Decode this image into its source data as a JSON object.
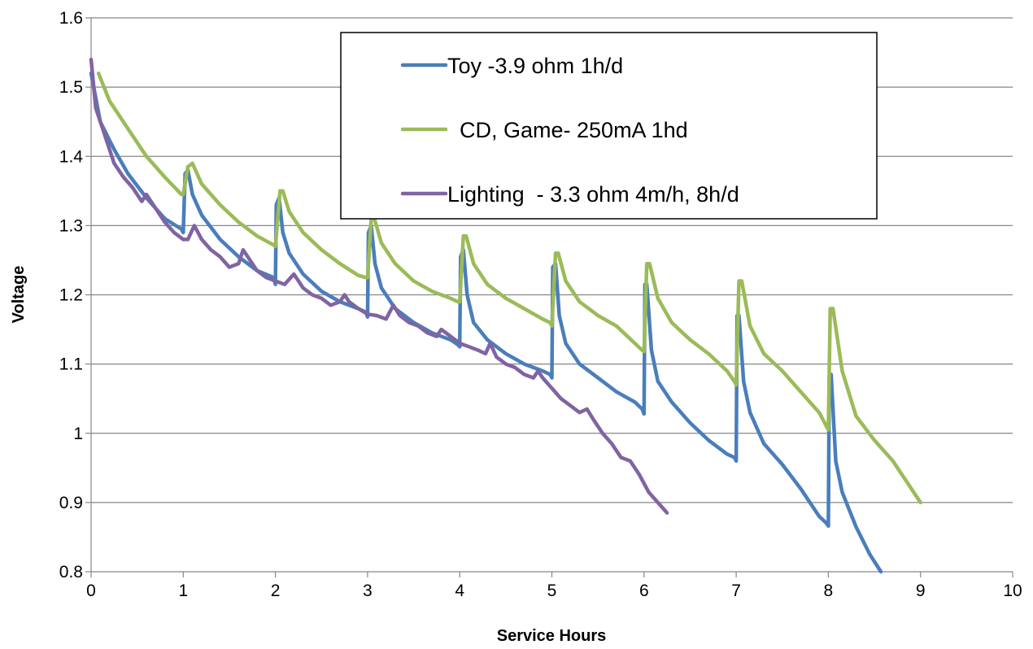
{
  "chart_data": {
    "type": "line",
    "title": "",
    "xlabel": "Service Hours",
    "ylabel": "Voltage",
    "xlim": [
      0,
      10
    ],
    "ylim": [
      0.8,
      1.6
    ],
    "x_ticks": [
      "0",
      "1",
      "2",
      "3",
      "4",
      "5",
      "6",
      "7",
      "8",
      "9",
      "10"
    ],
    "y_ticks": [
      "0.8",
      "0.9",
      "1",
      "1.1",
      "1.2",
      "1.3",
      "1.4",
      "1.5",
      "1.6"
    ],
    "grid": "horizontal",
    "legend_position": "top-center",
    "series": [
      {
        "name": "Toy -3.9 ohm 1h/d",
        "color": "#4a7ebb",
        "points": [
          [
            0.0,
            1.52
          ],
          [
            0.1,
            1.45
          ],
          [
            0.25,
            1.41
          ],
          [
            0.4,
            1.375
          ],
          [
            0.6,
            1.34
          ],
          [
            0.8,
            1.31
          ],
          [
            0.98,
            1.295
          ],
          [
            1.0,
            1.29
          ],
          [
            1.02,
            1.375
          ],
          [
            1.05,
            1.38
          ],
          [
            1.1,
            1.345
          ],
          [
            1.2,
            1.315
          ],
          [
            1.4,
            1.28
          ],
          [
            1.6,
            1.255
          ],
          [
            1.8,
            1.235
          ],
          [
            1.98,
            1.225
          ],
          [
            2.0,
            1.215
          ],
          [
            2.01,
            1.33
          ],
          [
            2.04,
            1.34
          ],
          [
            2.08,
            1.29
          ],
          [
            2.15,
            1.26
          ],
          [
            2.3,
            1.23
          ],
          [
            2.5,
            1.205
          ],
          [
            2.7,
            1.19
          ],
          [
            2.9,
            1.18
          ],
          [
            2.98,
            1.175
          ],
          [
            3.0,
            1.168
          ],
          [
            3.01,
            1.29
          ],
          [
            3.04,
            1.3
          ],
          [
            3.08,
            1.245
          ],
          [
            3.15,
            1.21
          ],
          [
            3.3,
            1.18
          ],
          [
            3.5,
            1.16
          ],
          [
            3.7,
            1.145
          ],
          [
            3.9,
            1.135
          ],
          [
            3.98,
            1.128
          ],
          [
            4.0,
            1.125
          ],
          [
            4.01,
            1.255
          ],
          [
            4.04,
            1.265
          ],
          [
            4.08,
            1.2
          ],
          [
            4.15,
            1.16
          ],
          [
            4.3,
            1.135
          ],
          [
            4.5,
            1.115
          ],
          [
            4.7,
            1.1
          ],
          [
            4.9,
            1.09
          ],
          [
            4.98,
            1.085
          ],
          [
            5.0,
            1.08
          ],
          [
            5.01,
            1.24
          ],
          [
            5.04,
            1.245
          ],
          [
            5.08,
            1.17
          ],
          [
            5.15,
            1.13
          ],
          [
            5.3,
            1.1
          ],
          [
            5.5,
            1.08
          ],
          [
            5.7,
            1.06
          ],
          [
            5.9,
            1.045
          ],
          [
            5.98,
            1.035
          ],
          [
            6.0,
            1.028
          ],
          [
            6.01,
            1.215
          ],
          [
            6.03,
            1.215
          ],
          [
            6.08,
            1.12
          ],
          [
            6.15,
            1.075
          ],
          [
            6.3,
            1.045
          ],
          [
            6.5,
            1.015
          ],
          [
            6.7,
            0.99
          ],
          [
            6.9,
            0.97
          ],
          [
            6.98,
            0.965
          ],
          [
            7.0,
            0.96
          ],
          [
            7.01,
            1.17
          ],
          [
            7.03,
            1.17
          ],
          [
            7.08,
            1.075
          ],
          [
            7.15,
            1.03
          ],
          [
            7.3,
            0.985
          ],
          [
            7.5,
            0.955
          ],
          [
            7.7,
            0.92
          ],
          [
            7.9,
            0.88
          ],
          [
            7.98,
            0.87
          ],
          [
            8.0,
            0.866
          ],
          [
            8.01,
            1.08
          ],
          [
            8.03,
            1.085
          ],
          [
            8.08,
            0.96
          ],
          [
            8.15,
            0.915
          ],
          [
            8.3,
            0.865
          ],
          [
            8.45,
            0.825
          ],
          [
            8.57,
            0.8
          ]
        ]
      },
      {
        "name": "CD, Game- 250mA 1hd",
        "color": "#9bbb59",
        "points": [
          [
            0.08,
            1.52
          ],
          [
            0.2,
            1.48
          ],
          [
            0.4,
            1.44
          ],
          [
            0.6,
            1.4
          ],
          [
            0.8,
            1.37
          ],
          [
            0.98,
            1.345
          ],
          [
            1.0,
            1.345
          ],
          [
            1.05,
            1.385
          ],
          [
            1.1,
            1.39
          ],
          [
            1.2,
            1.36
          ],
          [
            1.4,
            1.33
          ],
          [
            1.6,
            1.305
          ],
          [
            1.8,
            1.285
          ],
          [
            1.98,
            1.272
          ],
          [
            2.0,
            1.27
          ],
          [
            2.05,
            1.35
          ],
          [
            2.08,
            1.35
          ],
          [
            2.15,
            1.32
          ],
          [
            2.3,
            1.29
          ],
          [
            2.5,
            1.265
          ],
          [
            2.7,
            1.245
          ],
          [
            2.9,
            1.228
          ],
          [
            2.98,
            1.225
          ],
          [
            3.0,
            1.225
          ],
          [
            3.04,
            1.31
          ],
          [
            3.07,
            1.312
          ],
          [
            3.15,
            1.275
          ],
          [
            3.3,
            1.245
          ],
          [
            3.5,
            1.22
          ],
          [
            3.7,
            1.205
          ],
          [
            3.9,
            1.195
          ],
          [
            3.98,
            1.19
          ],
          [
            4.0,
            1.19
          ],
          [
            4.04,
            1.285
          ],
          [
            4.07,
            1.285
          ],
          [
            4.15,
            1.245
          ],
          [
            4.3,
            1.215
          ],
          [
            4.5,
            1.195
          ],
          [
            4.7,
            1.18
          ],
          [
            4.9,
            1.165
          ],
          [
            4.98,
            1.16
          ],
          [
            5.0,
            1.155
          ],
          [
            5.04,
            1.26
          ],
          [
            5.07,
            1.26
          ],
          [
            5.15,
            1.22
          ],
          [
            5.3,
            1.19
          ],
          [
            5.5,
            1.17
          ],
          [
            5.7,
            1.155
          ],
          [
            5.9,
            1.13
          ],
          [
            5.98,
            1.12
          ],
          [
            6.0,
            1.118
          ],
          [
            6.03,
            1.245
          ],
          [
            6.06,
            1.245
          ],
          [
            6.15,
            1.195
          ],
          [
            6.3,
            1.16
          ],
          [
            6.5,
            1.135
          ],
          [
            6.7,
            1.115
          ],
          [
            6.9,
            1.09
          ],
          [
            6.98,
            1.075
          ],
          [
            7.0,
            1.07
          ],
          [
            7.03,
            1.22
          ],
          [
            7.06,
            1.22
          ],
          [
            7.15,
            1.155
          ],
          [
            7.3,
            1.115
          ],
          [
            7.5,
            1.09
          ],
          [
            7.7,
            1.06
          ],
          [
            7.9,
            1.03
          ],
          [
            7.98,
            1.01
          ],
          [
            8.0,
            1.005
          ],
          [
            8.02,
            1.18
          ],
          [
            8.05,
            1.18
          ],
          [
            8.15,
            1.09
          ],
          [
            8.3,
            1.025
          ],
          [
            8.5,
            0.99
          ],
          [
            8.7,
            0.96
          ],
          [
            8.85,
            0.93
          ],
          [
            9.0,
            0.9
          ]
        ]
      },
      {
        "name": "Lighting  - 3.3 ohm 4m/h, 8h/d",
        "color": "#8064a2",
        "points": [
          [
            0.0,
            1.54
          ],
          [
            0.05,
            1.47
          ],
          [
            0.15,
            1.43
          ],
          [
            0.25,
            1.39
          ],
          [
            0.35,
            1.37
          ],
          [
            0.45,
            1.355
          ],
          [
            0.55,
            1.335
          ],
          [
            0.6,
            1.345
          ],
          [
            0.7,
            1.325
          ],
          [
            0.8,
            1.305
          ],
          [
            0.9,
            1.29
          ],
          [
            1.0,
            1.28
          ],
          [
            1.05,
            1.28
          ],
          [
            1.12,
            1.3
          ],
          [
            1.2,
            1.28
          ],
          [
            1.3,
            1.265
          ],
          [
            1.4,
            1.255
          ],
          [
            1.5,
            1.24
          ],
          [
            1.6,
            1.245
          ],
          [
            1.65,
            1.265
          ],
          [
            1.7,
            1.255
          ],
          [
            1.8,
            1.235
          ],
          [
            1.9,
            1.225
          ],
          [
            2.0,
            1.22
          ],
          [
            2.1,
            1.215
          ],
          [
            2.2,
            1.23
          ],
          [
            2.3,
            1.21
          ],
          [
            2.4,
            1.2
          ],
          [
            2.5,
            1.195
          ],
          [
            2.6,
            1.185
          ],
          [
            2.7,
            1.19
          ],
          [
            2.75,
            1.2
          ],
          [
            2.8,
            1.19
          ],
          [
            2.9,
            1.18
          ],
          [
            3.0,
            1.172
          ],
          [
            3.1,
            1.17
          ],
          [
            3.2,
            1.165
          ],
          [
            3.28,
            1.185
          ],
          [
            3.35,
            1.17
          ],
          [
            3.45,
            1.16
          ],
          [
            3.55,
            1.155
          ],
          [
            3.65,
            1.145
          ],
          [
            3.75,
            1.14
          ],
          [
            3.8,
            1.15
          ],
          [
            3.9,
            1.14
          ],
          [
            4.0,
            1.13
          ],
          [
            4.1,
            1.125
          ],
          [
            4.2,
            1.12
          ],
          [
            4.28,
            1.115
          ],
          [
            4.33,
            1.13
          ],
          [
            4.4,
            1.11
          ],
          [
            4.5,
            1.1
          ],
          [
            4.6,
            1.095
          ],
          [
            4.7,
            1.085
          ],
          [
            4.8,
            1.08
          ],
          [
            4.85,
            1.09
          ],
          [
            4.9,
            1.08
          ],
          [
            5.0,
            1.065
          ],
          [
            5.1,
            1.05
          ],
          [
            5.2,
            1.04
          ],
          [
            5.3,
            1.03
          ],
          [
            5.38,
            1.035
          ],
          [
            5.45,
            1.02
          ],
          [
            5.55,
            1.0
          ],
          [
            5.65,
            0.985
          ],
          [
            5.75,
            0.965
          ],
          [
            5.85,
            0.96
          ],
          [
            5.95,
            0.94
          ],
          [
            6.05,
            0.915
          ],
          [
            6.15,
            0.9
          ],
          [
            6.25,
            0.885
          ]
        ]
      }
    ]
  }
}
